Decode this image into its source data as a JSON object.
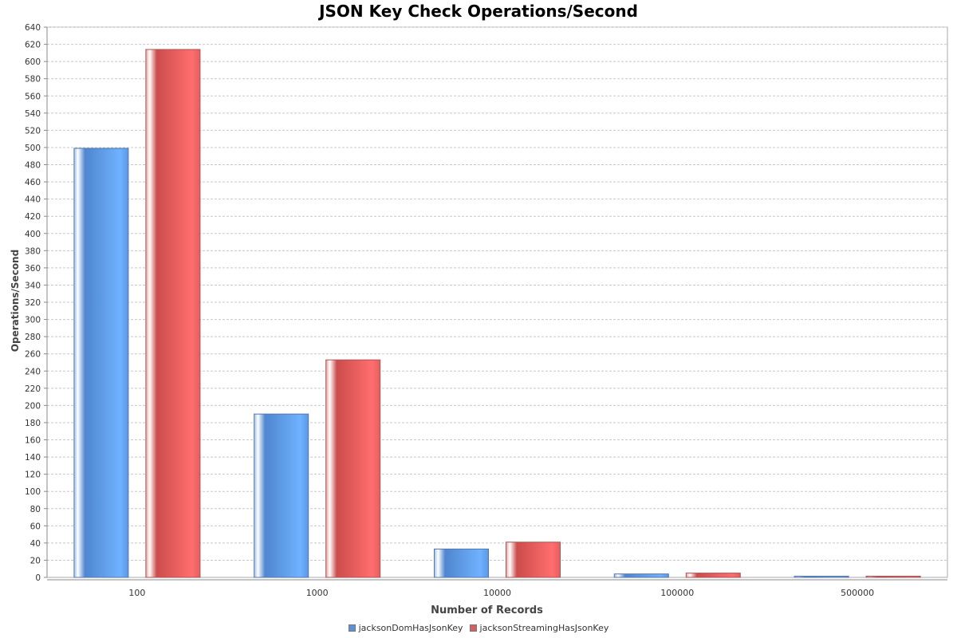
{
  "chart_data": {
    "type": "bar",
    "title": "JSON Key Check Operations/Second",
    "xlabel": "Number of Records",
    "ylabel": "Operations/Second",
    "categories": [
      "100",
      "1000",
      "10000",
      "100000",
      "500000"
    ],
    "series": [
      {
        "name": "jacksonDomHasJsonKey",
        "color": "#5f9de8",
        "values": [
          499,
          190,
          33,
          4,
          1
        ]
      },
      {
        "name": "jacksonStreamingHasJsonKey",
        "color": "#e85f5f",
        "values": [
          614,
          253,
          41,
          5,
          1
        ]
      }
    ],
    "ylim": [
      0,
      640
    ],
    "ytick_step": 20,
    "grid": true,
    "legend": "bottom"
  }
}
